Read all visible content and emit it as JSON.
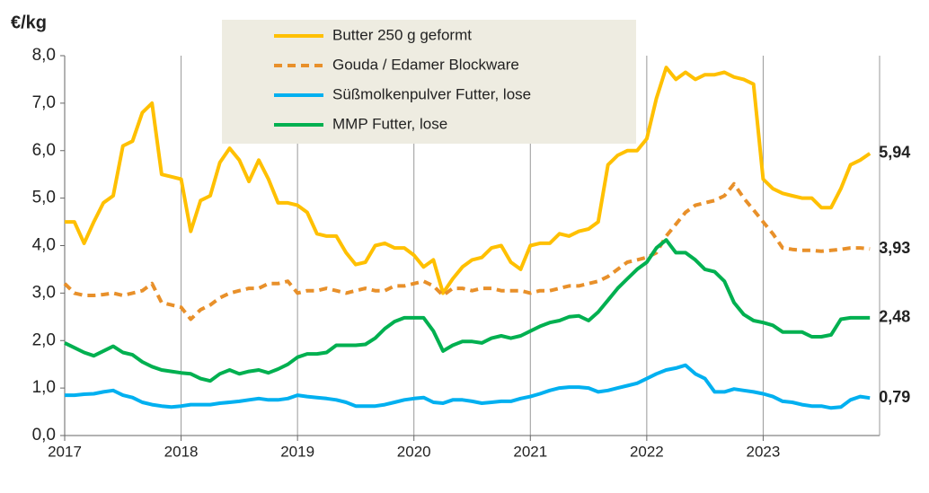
{
  "chart_data": {
    "type": "line",
    "y_label": "€/kg",
    "x": [
      2017,
      2017.083,
      2017.167,
      2017.25,
      2017.333,
      2017.417,
      2017.5,
      2017.583,
      2017.667,
      2017.75,
      2017.833,
      2017.917,
      2018,
      2018.083,
      2018.167,
      2018.25,
      2018.333,
      2018.417,
      2018.5,
      2018.583,
      2018.667,
      2018.75,
      2018.833,
      2018.917,
      2019,
      2019.083,
      2019.167,
      2019.25,
      2019.333,
      2019.417,
      2019.5,
      2019.583,
      2019.667,
      2019.75,
      2019.833,
      2019.917,
      2020,
      2020.083,
      2020.167,
      2020.25,
      2020.333,
      2020.417,
      2020.5,
      2020.583,
      2020.667,
      2020.75,
      2020.833,
      2020.917,
      2021,
      2021.083,
      2021.167,
      2021.25,
      2021.333,
      2021.417,
      2021.5,
      2021.583,
      2021.667,
      2021.75,
      2021.833,
      2021.917,
      2022,
      2022.083,
      2022.167,
      2022.25,
      2022.333,
      2022.417,
      2022.5,
      2022.583,
      2022.667,
      2022.75,
      2022.833,
      2022.917,
      2023,
      2023.083,
      2023.167,
      2023.25,
      2023.333,
      2023.417,
      2023.5,
      2023.583,
      2023.667,
      2023.75,
      2023.833,
      2023.917
    ],
    "xlim": [
      2017,
      2024
    ],
    "xticks": [
      2017,
      2018,
      2019,
      2020,
      2021,
      2022,
      2023
    ],
    "ylim": [
      0,
      8
    ],
    "yticks": [
      {
        "value": 0,
        "label": "0,0"
      },
      {
        "value": 1,
        "label": "1,0"
      },
      {
        "value": 2,
        "label": "2,0"
      },
      {
        "value": 3,
        "label": "3,0"
      },
      {
        "value": 4,
        "label": "4,0"
      },
      {
        "value": 5,
        "label": "5,0"
      },
      {
        "value": 6,
        "label": "6,0"
      },
      {
        "value": 7,
        "label": "7,0"
      },
      {
        "value": 8,
        "label": "8,0"
      }
    ],
    "grid": "x",
    "series": [
      {
        "name": "Butter 250 g geformt",
        "color": "#ffc000",
        "dashed": false,
        "values": [
          4.5,
          4.5,
          4.05,
          4.5,
          4.9,
          5.05,
          6.1,
          6.2,
          6.8,
          7.0,
          5.5,
          5.45,
          5.4,
          4.3,
          4.95,
          5.05,
          5.75,
          6.05,
          5.8,
          5.35,
          5.8,
          5.4,
          4.9,
          4.9,
          4.85,
          4.7,
          4.25,
          4.2,
          4.2,
          3.85,
          3.6,
          3.65,
          4.0,
          4.05,
          3.95,
          3.95,
          3.8,
          3.55,
          3.7,
          3.0,
          3.3,
          3.55,
          3.7,
          3.75,
          3.95,
          4.0,
          3.65,
          3.5,
          4.0,
          4.05,
          4.05,
          4.25,
          4.2,
          4.3,
          4.35,
          4.5,
          5.7,
          5.9,
          6.0,
          6.0,
          6.25,
          7.1,
          7.75,
          7.5,
          7.65,
          7.5,
          7.6,
          7.6,
          7.65,
          7.55,
          7.5,
          7.4,
          5.4,
          5.2,
          5.1,
          5.05,
          5.0,
          5.0,
          4.8,
          4.8,
          5.2,
          5.7,
          5.8,
          5.94
        ],
        "value_labels": [
          null,
          null,
          null,
          null,
          null,
          null,
          null,
          null,
          null,
          null,
          null,
          null,
          null,
          null,
          null,
          null,
          null,
          null,
          null,
          null,
          null,
          null,
          null,
          null,
          null,
          null,
          null,
          null,
          null,
          null,
          null,
          null,
          null,
          null,
          null,
          null,
          null,
          null,
          null,
          null,
          null,
          null,
          null,
          null,
          null,
          null,
          null,
          null,
          null,
          null,
          null,
          null,
          null,
          null,
          null,
          null,
          null,
          null,
          null,
          null,
          null,
          null,
          null,
          null,
          null,
          null,
          null,
          null,
          null,
          null,
          null,
          null,
          null,
          null,
          null,
          null,
          null,
          null,
          null,
          null,
          null,
          null,
          null,
          "5,94"
        ]
      },
      {
        "name": "Gouda / Edamer Blockware",
        "color": "#e8902a",
        "dashed": true,
        "values": [
          3.2,
          3.0,
          2.95,
          2.95,
          2.97,
          3.0,
          2.95,
          3.0,
          3.05,
          3.2,
          2.8,
          2.75,
          2.7,
          2.45,
          2.65,
          2.75,
          2.9,
          3.0,
          3.05,
          3.1,
          3.1,
          3.2,
          3.2,
          3.25,
          3.0,
          3.05,
          3.05,
          3.1,
          3.05,
          3.0,
          3.05,
          3.1,
          3.05,
          3.05,
          3.15,
          3.15,
          3.2,
          3.25,
          3.15,
          2.95,
          3.1,
          3.1,
          3.05,
          3.1,
          3.1,
          3.05,
          3.05,
          3.05,
          3.0,
          3.05,
          3.05,
          3.1,
          3.15,
          3.15,
          3.2,
          3.25,
          3.35,
          3.5,
          3.65,
          3.7,
          3.75,
          3.85,
          4.2,
          4.45,
          4.7,
          4.85,
          4.9,
          4.95,
          5.05,
          5.3,
          5.0,
          4.75,
          4.5,
          4.25,
          3.95,
          3.92,
          3.9,
          3.9,
          3.88,
          3.9,
          3.92,
          3.95,
          3.95,
          3.93
        ],
        "value_labels": [
          null,
          null,
          null,
          null,
          null,
          null,
          null,
          null,
          null,
          null,
          null,
          null,
          null,
          null,
          null,
          null,
          null,
          null,
          null,
          null,
          null,
          null,
          null,
          null,
          null,
          null,
          null,
          null,
          null,
          null,
          null,
          null,
          null,
          null,
          null,
          null,
          null,
          null,
          null,
          null,
          null,
          null,
          null,
          null,
          null,
          null,
          null,
          null,
          null,
          null,
          null,
          null,
          null,
          null,
          null,
          null,
          null,
          null,
          null,
          null,
          null,
          null,
          null,
          null,
          null,
          null,
          null,
          null,
          null,
          null,
          null,
          null,
          null,
          null,
          null,
          null,
          null,
          null,
          null,
          null,
          null,
          null,
          null,
          "3,93"
        ]
      },
      {
        "name": "Süßmolkenpulver Futter, lose",
        "color": "#00b0f0",
        "dashed": false,
        "values": [
          0.85,
          0.85,
          0.87,
          0.88,
          0.92,
          0.95,
          0.85,
          0.8,
          0.7,
          0.65,
          0.62,
          0.6,
          0.62,
          0.65,
          0.65,
          0.65,
          0.68,
          0.7,
          0.72,
          0.75,
          0.78,
          0.75,
          0.75,
          0.78,
          0.85,
          0.82,
          0.8,
          0.78,
          0.75,
          0.7,
          0.62,
          0.62,
          0.62,
          0.65,
          0.7,
          0.75,
          0.78,
          0.8,
          0.7,
          0.68,
          0.75,
          0.75,
          0.72,
          0.68,
          0.7,
          0.72,
          0.72,
          0.78,
          0.82,
          0.88,
          0.95,
          1.0,
          1.02,
          1.02,
          1.0,
          0.92,
          0.95,
          1.0,
          1.05,
          1.1,
          1.2,
          1.3,
          1.38,
          1.42,
          1.48,
          1.3,
          1.2,
          0.92,
          0.92,
          0.98,
          0.95,
          0.92,
          0.88,
          0.82,
          0.72,
          0.7,
          0.65,
          0.62,
          0.62,
          0.58,
          0.6,
          0.75,
          0.82,
          0.79
        ],
        "value_labels": [
          null,
          null,
          null,
          null,
          null,
          null,
          null,
          null,
          null,
          null,
          null,
          null,
          null,
          null,
          null,
          null,
          null,
          null,
          null,
          null,
          null,
          null,
          null,
          null,
          null,
          null,
          null,
          null,
          null,
          null,
          null,
          null,
          null,
          null,
          null,
          null,
          null,
          null,
          null,
          null,
          null,
          null,
          null,
          null,
          null,
          null,
          null,
          null,
          null,
          null,
          null,
          null,
          null,
          null,
          null,
          null,
          null,
          null,
          null,
          null,
          null,
          null,
          null,
          null,
          null,
          null,
          null,
          null,
          null,
          null,
          null,
          null,
          null,
          null,
          null,
          null,
          null,
          null,
          null,
          null,
          null,
          null,
          null,
          "0,79"
        ]
      },
      {
        "name": "MMP Futter, lose",
        "color": "#00b050",
        "dashed": false,
        "values": [
          1.95,
          1.85,
          1.75,
          1.68,
          1.78,
          1.88,
          1.75,
          1.7,
          1.55,
          1.45,
          1.38,
          1.35,
          1.32,
          1.3,
          1.2,
          1.15,
          1.3,
          1.38,
          1.3,
          1.35,
          1.38,
          1.32,
          1.4,
          1.5,
          1.65,
          1.72,
          1.72,
          1.75,
          1.9,
          1.9,
          1.9,
          1.92,
          2.05,
          2.25,
          2.4,
          2.48,
          2.48,
          2.48,
          2.2,
          1.78,
          1.9,
          1.98,
          1.98,
          1.95,
          2.05,
          2.1,
          2.05,
          2.1,
          2.2,
          2.3,
          2.38,
          2.42,
          2.5,
          2.52,
          2.42,
          2.6,
          2.85,
          3.1,
          3.3,
          3.5,
          3.65,
          3.95,
          4.12,
          3.85,
          3.85,
          3.7,
          3.5,
          3.45,
          3.25,
          2.8,
          2.55,
          2.42,
          2.38,
          2.32,
          2.18,
          2.18,
          2.18,
          2.08,
          2.08,
          2.12,
          2.45,
          2.48,
          2.48,
          2.48
        ],
        "value_labels": [
          null,
          null,
          null,
          null,
          null,
          null,
          null,
          null,
          null,
          null,
          null,
          null,
          null,
          null,
          null,
          null,
          null,
          null,
          null,
          null,
          null,
          null,
          null,
          null,
          null,
          null,
          null,
          null,
          null,
          null,
          null,
          null,
          null,
          null,
          null,
          null,
          null,
          null,
          null,
          null,
          null,
          null,
          null,
          null,
          null,
          null,
          null,
          null,
          null,
          null,
          null,
          null,
          null,
          null,
          null,
          null,
          null,
          null,
          null,
          null,
          null,
          null,
          null,
          null,
          null,
          null,
          null,
          null,
          null,
          null,
          null,
          null,
          null,
          null,
          null,
          null,
          null,
          null,
          null,
          null,
          null,
          null,
          null,
          "2,48"
        ]
      }
    ]
  }
}
